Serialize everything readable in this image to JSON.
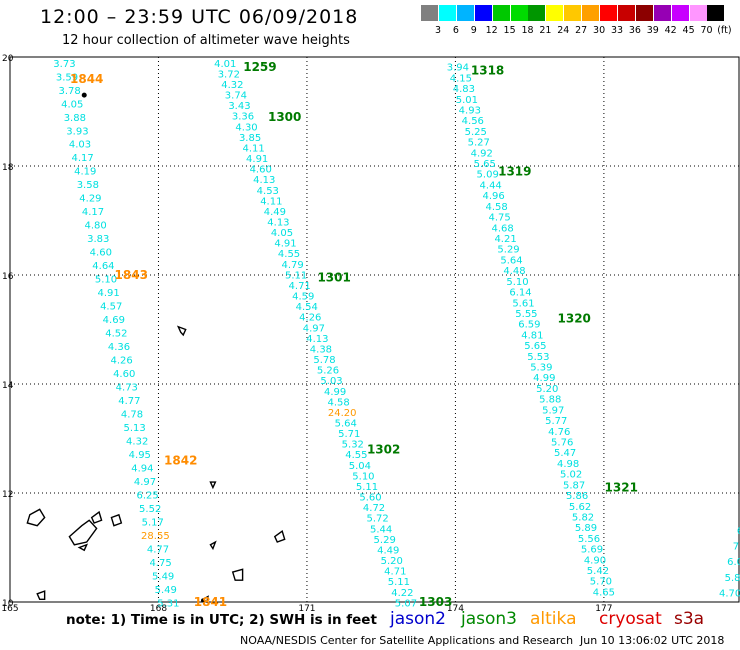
{
  "header": {
    "title": "12:00 – 23:59 UTC 06/09/2018",
    "subtitle": "12 hour collection of altimeter wave heights"
  },
  "color_scale": {
    "colors": [
      "#808080",
      "#00ffff",
      "#00b4ff",
      "#0000ff",
      "#00c800",
      "#00dc00",
      "#009600",
      "#ffff00",
      "#ffc800",
      "#ffa000",
      "#ff0000",
      "#c80000",
      "#8c0000",
      "#9600b4",
      "#c800ff",
      "#ff96ff",
      "#000000"
    ],
    "labels": [
      "3",
      "6",
      "9",
      "12",
      "15",
      "18",
      "21",
      "24",
      "27",
      "30",
      "33",
      "36",
      "39",
      "42",
      "45",
      "70",
      "(ft)"
    ]
  },
  "axes": {
    "x_ticks": [
      "165",
      "168",
      "171",
      "174",
      "177"
    ],
    "y_ticks": [
      "10",
      "12",
      "14",
      "16",
      "18",
      "20"
    ],
    "xlim": [
      165,
      179.75
    ],
    "ylim": [
      10,
      20
    ]
  },
  "colors": {
    "swh": "#00e0e0",
    "swh_high": "#ff9900",
    "time_green": "#007a00",
    "time_orange": "#ff8c00",
    "jason2": "#0000cc",
    "jason3": "#008800",
    "altika": "#ff9900",
    "cryosat": "#dd0000",
    "s3a": "#990000"
  },
  "tracks": [
    {
      "values": [
        "3.73",
        "3.59",
        "3.78",
        "4.05",
        "3.88",
        "3.93",
        "4.03",
        "4.17",
        "4.19",
        "3.58",
        "4.29",
        "4.17",
        "4.80",
        "3.83",
        "4.60",
        "4.64",
        "5.10",
        "4.91",
        "4.57",
        "4.69",
        "4.52",
        "4.36",
        "4.26",
        "4.60",
        "4.73",
        "4.77",
        "4.78",
        "5.13",
        "4.32",
        "4.95",
        "4.94",
        "4.97",
        "6.25",
        "5.52",
        "5.17",
        "28.55",
        "4.77",
        "4.75",
        "5.49",
        "5.49",
        "5.31"
      ],
      "highlight_values": [
        "28.55"
      ],
      "start": [
        166.1,
        19.82
      ],
      "end": [
        168.2,
        9.92
      ],
      "times": [
        {
          "label": "1844",
          "at": [
            166.55,
            19.6
          ],
          "color": "orange"
        },
        {
          "label": "1843",
          "at": [
            167.45,
            16.0
          ],
          "color": "orange"
        },
        {
          "label": "1842",
          "at": [
            168.45,
            12.6
          ],
          "color": "orange"
        },
        {
          "label": "1841",
          "at": [
            169.05,
            10.0
          ],
          "color": "orange"
        }
      ]
    },
    {
      "values": [
        "4.01",
        "3.72",
        "4.32",
        "3.74",
        "3.43",
        "3.36",
        "4.30",
        "3.85",
        "4.11",
        "4.91",
        "4.60",
        "4.13",
        "4.53",
        "4.11",
        "4.49",
        "4.13",
        "4.05",
        "4.91",
        "4.55",
        "4.79",
        "5.11",
        "4.71",
        "4.59",
        "4.54",
        "4.26",
        "4.97",
        "4.13",
        "4.38",
        "5.78",
        "5.26",
        "5.03",
        "4.99",
        "4.58",
        "24.20",
        "5.64",
        "5.71",
        "5.32",
        "4.55",
        "5.04",
        "5.10",
        "5.11",
        "5.60",
        "4.72",
        "5.72",
        "5.44",
        "5.29",
        "4.49",
        "5.20",
        "4.71",
        "5.11",
        "4.22",
        "5.07"
      ],
      "highlight_values": [
        "24.20"
      ],
      "start": [
        169.35,
        19.82
      ],
      "end": [
        173.0,
        9.92
      ],
      "times": [
        {
          "label": "1259",
          "at": [
            170.05,
            19.82
          ],
          "color": "green"
        },
        {
          "label": "1300",
          "at": [
            170.55,
            18.9
          ],
          "color": "green"
        },
        {
          "label": "1301",
          "at": [
            171.55,
            15.95
          ],
          "color": "green"
        },
        {
          "label": "1302",
          "at": [
            172.55,
            12.8
          ],
          "color": "green"
        },
        {
          "label": "1303",
          "at": [
            173.6,
            10.0
          ],
          "color": "green"
        }
      ]
    },
    {
      "values": [
        "3.94",
        "4.15",
        "4.83",
        "5.01",
        "4.93",
        "4.56",
        "5.25",
        "5.27",
        "4.92",
        "5.65",
        "5.09",
        "4.44",
        "4.96",
        "4.58",
        "4.75",
        "4.68",
        "4.21",
        "5.29",
        "5.64",
        "4.48",
        "5.10",
        "6.14",
        "5.61",
        "5.55",
        "6.59",
        "4.81",
        "5.65",
        "5.53",
        "5.39",
        "4.99",
        "5.20",
        "5.88",
        "5.97",
        "5.77",
        "4.76",
        "5.76",
        "5.47",
        "4.98",
        "5.02",
        "5.87",
        "5.86",
        "5.62",
        "5.82",
        "5.89",
        "5.56",
        "5.69",
        "4.90",
        "5.42",
        "5.70",
        "4.65"
      ],
      "highlight_values": [],
      "start": [
        174.05,
        19.75
      ],
      "end": [
        177.0,
        10.12
      ],
      "times": [
        {
          "label": "1318",
          "at": [
            174.65,
            19.75
          ],
          "color": "green"
        },
        {
          "label": "1319",
          "at": [
            175.2,
            17.9
          ],
          "color": "green"
        },
        {
          "label": "1320",
          "at": [
            176.4,
            15.2
          ],
          "color": "green"
        },
        {
          "label": "1321",
          "at": [
            177.35,
            12.1
          ],
          "color": "green"
        }
      ]
    },
    {
      "values": [
        "6",
        "7.",
        "6.0",
        "5.8",
        "4.70"
      ],
      "highlight_values": [],
      "start": [
        179.75,
        11.25
      ],
      "end": [
        179.55,
        10.1
      ],
      "times": []
    }
  ],
  "footer": {
    "note": "note: 1) Time is in UTC; 2) SWH is in feet",
    "satellites": [
      "jason2",
      "jason3",
      "altika",
      "cryosat",
      "s3a"
    ],
    "credit": "NOAA/NESDIS Center for Satellite Applications and Research",
    "timestamp": "Jun 10 13:06:02 UTC 2018"
  }
}
